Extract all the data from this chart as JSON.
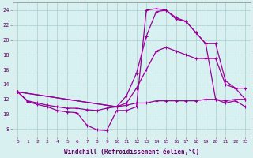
{
  "bg_color": "#d8f0f0",
  "grid_color": "#a8cece",
  "line_color": "#990099",
  "xlabel": "Windchill (Refroidissement éolien,°C)",
  "xlabel_color": "#660066",
  "tick_color": "#660066",
  "xlim": [
    -0.5,
    23.5
  ],
  "ylim": [
    7,
    25
  ],
  "yticks": [
    8,
    10,
    12,
    14,
    16,
    18,
    20,
    22,
    24
  ],
  "xticks": [
    0,
    1,
    2,
    3,
    4,
    5,
    6,
    7,
    8,
    9,
    10,
    11,
    12,
    13,
    14,
    15,
    16,
    17,
    18,
    19,
    20,
    21,
    22,
    23
  ],
  "curve1_x": [
    0,
    1,
    2,
    3,
    4,
    5,
    6,
    7,
    8,
    9,
    10,
    11,
    12,
    13,
    14,
    15,
    16,
    17,
    18,
    19,
    20,
    21,
    22,
    23
  ],
  "curve1_y": [
    13.0,
    11.7,
    11.3,
    11.0,
    10.5,
    10.3,
    10.2,
    8.5,
    7.9,
    7.8,
    10.5,
    10.5,
    11.0,
    24.0,
    24.2,
    24.0,
    23.0,
    22.5,
    21.0,
    19.5,
    12.0,
    11.5,
    11.8,
    11.0
  ],
  "curve2_x": [
    0,
    10,
    11,
    12,
    13,
    14,
    15,
    16,
    17,
    18,
    19,
    20,
    21,
    22,
    23
  ],
  "curve2_y": [
    13.0,
    11.0,
    12.5,
    15.5,
    20.5,
    23.8,
    24.0,
    22.8,
    22.5,
    21.0,
    19.5,
    19.5,
    14.5,
    13.5,
    12.0
  ],
  "curve3_x": [
    0,
    10,
    11,
    12,
    13,
    14,
    15,
    16,
    17,
    18,
    19,
    20,
    21,
    22,
    23
  ],
  "curve3_y": [
    13.0,
    11.0,
    11.5,
    13.5,
    16.0,
    18.5,
    19.0,
    18.5,
    18.0,
    17.5,
    17.5,
    17.5,
    14.0,
    13.5,
    13.5
  ],
  "curve4_x": [
    0,
    1,
    2,
    3,
    4,
    5,
    6,
    7,
    8,
    9,
    10,
    11,
    12,
    13,
    14,
    15,
    16,
    17,
    18,
    19,
    20,
    21,
    22,
    23
  ],
  "curve4_y": [
    13.0,
    11.8,
    11.5,
    11.2,
    11.0,
    10.8,
    10.8,
    10.6,
    10.5,
    10.8,
    11.0,
    11.2,
    11.5,
    11.5,
    11.8,
    11.8,
    11.8,
    11.8,
    11.8,
    12.0,
    12.0,
    11.8,
    12.0,
    12.0
  ]
}
